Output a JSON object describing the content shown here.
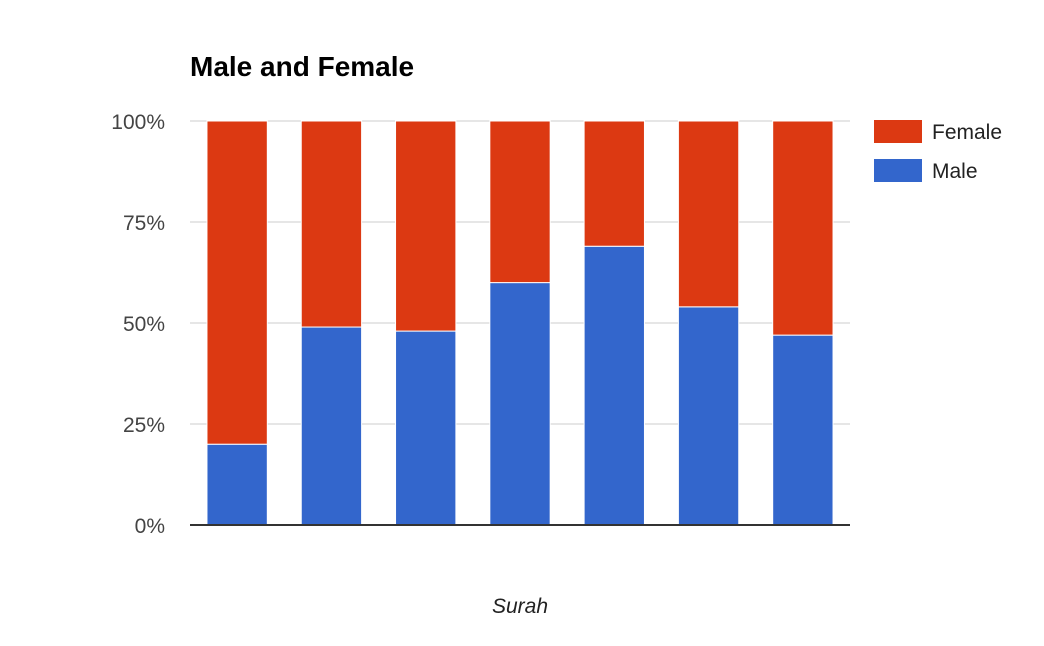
{
  "chart_data": {
    "type": "bar",
    "stacked": true,
    "percent": true,
    "title": "Male and Female",
    "xlabel": "Surah",
    "ylabel": "",
    "ylim": [
      0,
      100
    ],
    "yticks": [
      "0%",
      "25%",
      "50%",
      "75%",
      "100%"
    ],
    "grid": true,
    "legend_position": "right",
    "series": [
      {
        "name": "Male",
        "color": "#3366cc",
        "values": [
          20,
          49,
          48,
          60,
          69,
          54,
          47
        ]
      },
      {
        "name": "Female",
        "color": "#dc3912",
        "values": [
          80,
          51,
          52,
          40,
          31,
          46,
          53
        ]
      }
    ],
    "legend": [
      {
        "name": "Female",
        "color": "#dc3912"
      },
      {
        "name": "Male",
        "color": "#3366cc"
      }
    ]
  }
}
